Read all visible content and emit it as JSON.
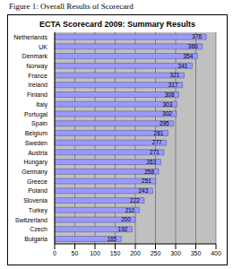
{
  "figure_caption": "Figure 1: Overall Results of Scorecard",
  "chart_data": {
    "type": "bar",
    "title": "ECTA Scorecard 2009: Summary Results",
    "orientation": "horizontal",
    "categories": [
      "Netherlands",
      "UK",
      "Denmark",
      "Norway",
      "France",
      "Ireland",
      "Finland",
      "Italy",
      "Portugal",
      "Spain",
      "Belgium",
      "Sweden",
      "Austria",
      "Hungary",
      "Germany",
      "Greece",
      "Poland",
      "Slovenia",
      "Turkey",
      "Switzerland",
      "Czech",
      "Bulgaria"
    ],
    "values": [
      376,
      366,
      354,
      341,
      321,
      317,
      308,
      303,
      302,
      295,
      281,
      277,
      271,
      263,
      258,
      251,
      243,
      222,
      210,
      200,
      192,
      165
    ],
    "color": "#9999ff",
    "xlim": [
      0,
      400
    ],
    "xticks": [
      0,
      50,
      100,
      150,
      200,
      250,
      300,
      350,
      400
    ],
    "grid": true,
    "data_labels": true
  }
}
